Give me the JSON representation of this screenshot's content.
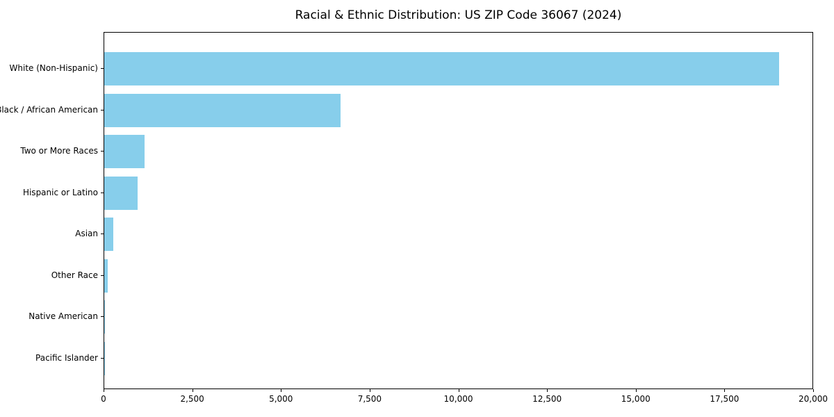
{
  "title": "Racial & Ethnic Distribution: US ZIP Code 36067 (2024)",
  "colors": {
    "bar": "#87CEEB",
    "axis": "#000000",
    "background": "#FFFFFF",
    "text": "#000000"
  },
  "chart_data": {
    "type": "bar",
    "orientation": "horizontal",
    "title": "Racial & Ethnic Distribution: US ZIP Code 36067 (2024)",
    "categories": [
      "White (Non-Hispanic)",
      "Black / African American",
      "Two or More Races",
      "Hispanic or Latino",
      "Asian",
      "Other Race",
      "Native American",
      "Pacific Islander"
    ],
    "values": [
      19060,
      6680,
      1140,
      940,
      255,
      100,
      25,
      8
    ],
    "xlabel": "",
    "ylabel": "",
    "xlim": [
      0,
      20000
    ],
    "x_ticks": [
      0,
      2500,
      5000,
      7500,
      10000,
      12500,
      15000,
      17500,
      20000
    ],
    "x_tick_labels": [
      "0",
      "2,500",
      "5,000",
      "7,500",
      "10,000",
      "12,500",
      "15,000",
      "17,500",
      "20,000"
    ],
    "bar_color": "#87CEEB",
    "grid": false,
    "legend": false
  }
}
